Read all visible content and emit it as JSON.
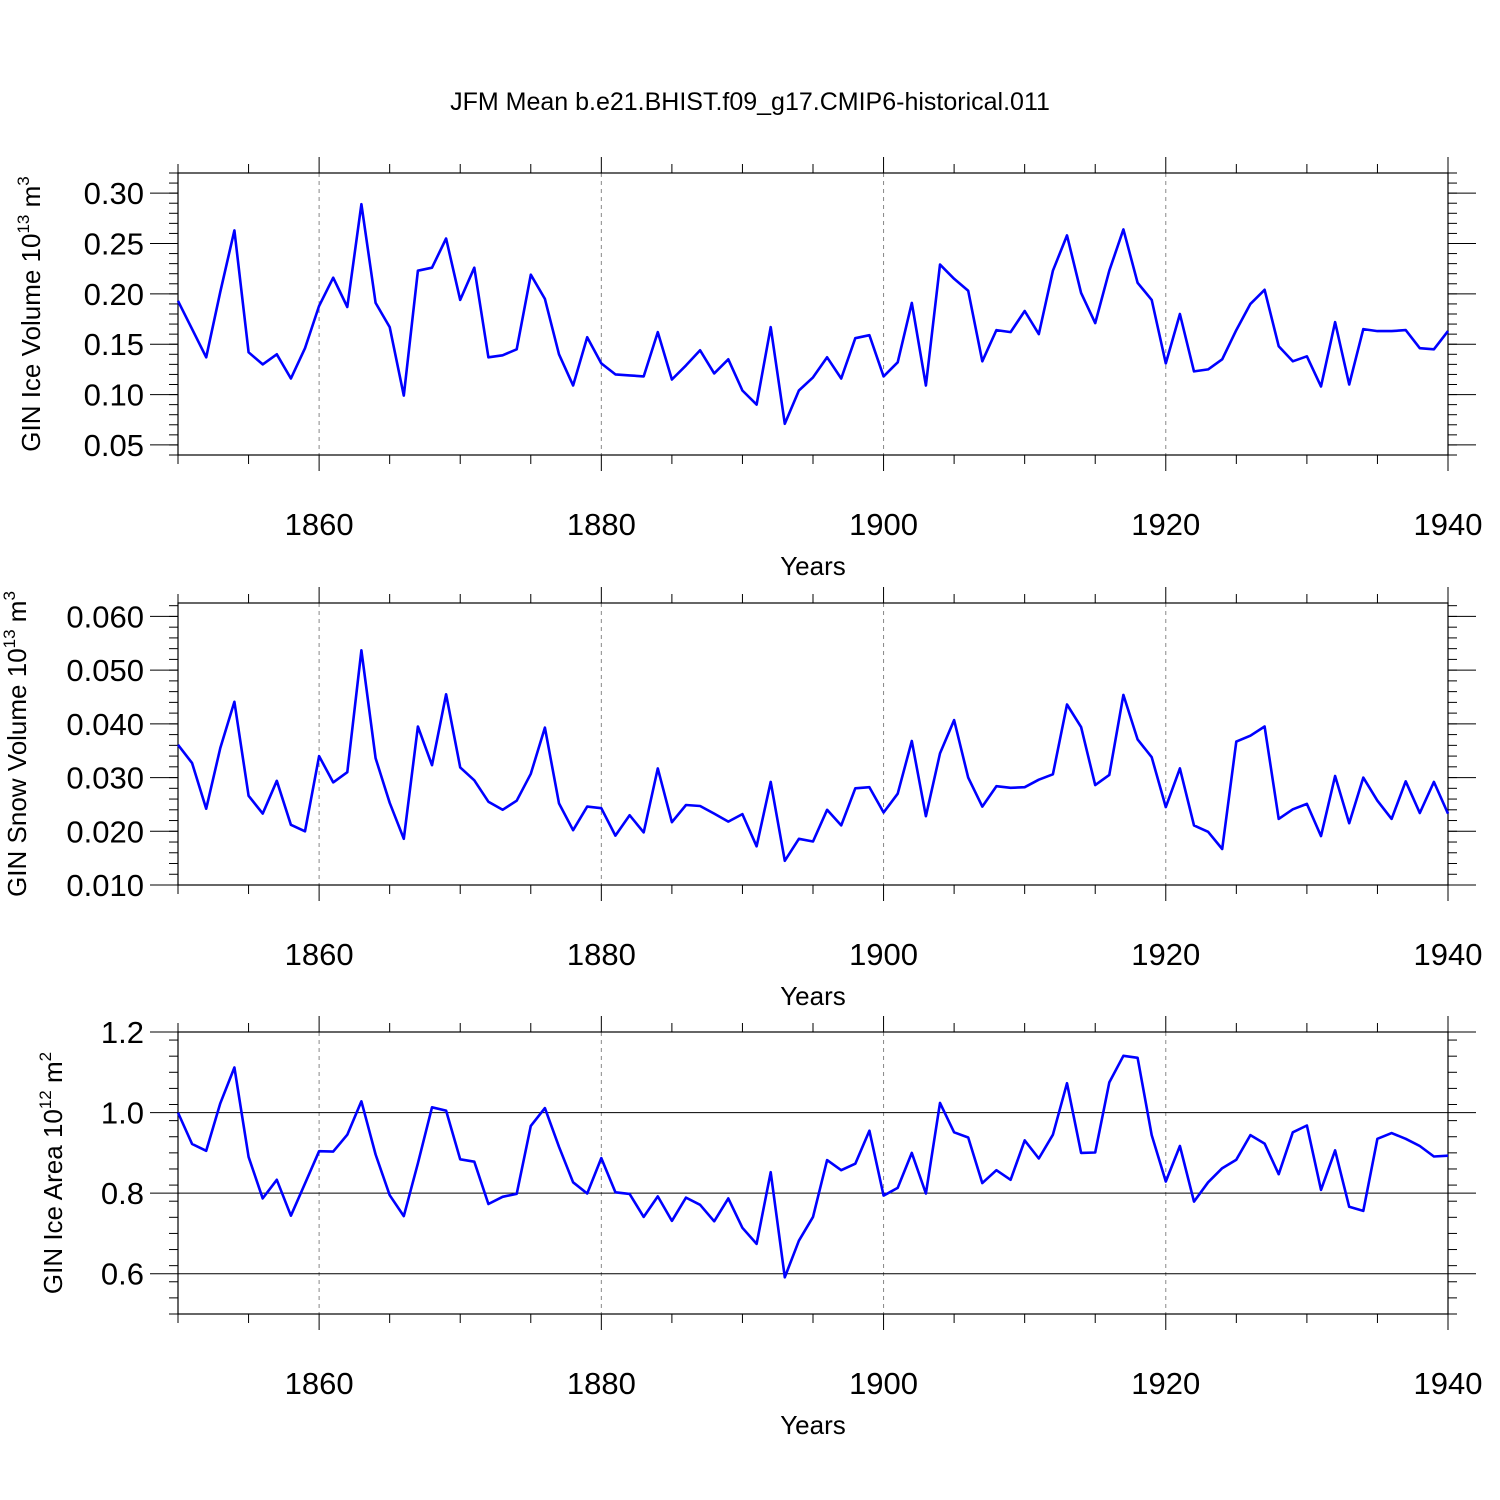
{
  "title": "JFM Mean b.e21.BHIST.f09_g17.CMIP6-historical.011",
  "colors": {
    "line": "#0000ff",
    "axis": "#000000",
    "grid": "#888888"
  },
  "chart_data": [
    {
      "type": "line",
      "name": "ice-volume",
      "ylabel_main": "GIN Ice Volume 10",
      "ylabel_exp": "13",
      "ylabel_unit": "m",
      "ylabel_unit_exp": "3",
      "xlabel": "Years",
      "xlim": [
        1850,
        1940
      ],
      "ylim": [
        0.04,
        0.32
      ],
      "yticks": [
        0.05,
        0.1,
        0.15,
        0.2,
        0.25,
        0.3
      ],
      "ytick_labels": [
        "0.05",
        "0.10",
        "0.15",
        "0.20",
        "0.25",
        "0.30"
      ],
      "xticks": [
        1860,
        1880,
        1900,
        1920,
        1940
      ],
      "xtick_labels": [
        "1860",
        "1880",
        "1900",
        "1920",
        "1940"
      ],
      "ygrid": false,
      "x_start": 1850,
      "values": [
        0.193,
        0.165,
        0.137,
        0.202,
        0.263,
        0.142,
        0.13,
        0.14,
        0.116,
        0.146,
        0.188,
        0.216,
        0.187,
        0.289,
        0.191,
        0.167,
        0.099,
        0.223,
        0.226,
        0.255,
        0.194,
        0.226,
        0.137,
        0.139,
        0.145,
        0.219,
        0.195,
        0.14,
        0.109,
        0.157,
        0.131,
        0.12,
        0.119,
        0.118,
        0.162,
        0.115,
        0.129,
        0.144,
        0.121,
        0.135,
        0.104,
        0.09,
        0.167,
        0.071,
        0.104,
        0.117,
        0.137,
        0.116,
        0.156,
        0.159,
        0.118,
        0.132,
        0.191,
        0.109,
        0.229,
        0.215,
        0.203,
        0.133,
        0.164,
        0.162,
        0.183,
        0.16,
        0.223,
        0.258,
        0.201,
        0.171,
        0.223,
        0.264,
        0.211,
        0.194,
        0.131,
        0.18,
        0.123,
        0.125,
        0.135,
        0.164,
        0.19,
        0.204,
        0.148,
        0.133,
        0.138,
        0.108,
        0.172,
        0.11,
        0.165,
        0.163,
        0.163,
        0.164,
        0.146,
        0.145,
        0.163
      ]
    },
    {
      "type": "line",
      "name": "snow-volume",
      "ylabel_main": "GIN Snow Volume 10",
      "ylabel_exp": "13",
      "ylabel_unit": "m",
      "ylabel_unit_exp": "3",
      "xlabel": "Years",
      "xlim": [
        1850,
        1940
      ],
      "ylim": [
        0.01,
        0.0625
      ],
      "yticks": [
        0.01,
        0.02,
        0.03,
        0.04,
        0.05,
        0.06
      ],
      "ytick_labels": [
        "0.010",
        "0.020",
        "0.030",
        "0.040",
        "0.050",
        "0.060"
      ],
      "xticks": [
        1860,
        1880,
        1900,
        1920,
        1940
      ],
      "xtick_labels": [
        "1860",
        "1880",
        "1900",
        "1920",
        "1940"
      ],
      "ygrid": false,
      "x_start": 1850,
      "values": [
        0.0361,
        0.0327,
        0.0242,
        0.0355,
        0.0441,
        0.0266,
        0.0233,
        0.0294,
        0.0212,
        0.02,
        0.034,
        0.0291,
        0.031,
        0.0537,
        0.0336,
        0.0253,
        0.0186,
        0.0395,
        0.0323,
        0.0455,
        0.0319,
        0.0295,
        0.0255,
        0.024,
        0.0257,
        0.0307,
        0.0393,
        0.0252,
        0.0202,
        0.0246,
        0.0243,
        0.0192,
        0.023,
        0.0198,
        0.0317,
        0.0217,
        0.0249,
        0.0247,
        0.0233,
        0.0218,
        0.0232,
        0.0172,
        0.0292,
        0.0145,
        0.0186,
        0.0181,
        0.024,
        0.0211,
        0.028,
        0.0282,
        0.0235,
        0.027,
        0.0368,
        0.0228,
        0.0345,
        0.0407,
        0.03,
        0.0246,
        0.0284,
        0.0281,
        0.0282,
        0.0296,
        0.0306,
        0.0436,
        0.0394,
        0.0286,
        0.0305,
        0.0454,
        0.0371,
        0.0338,
        0.0245,
        0.0317,
        0.0211,
        0.0199,
        0.0167,
        0.0367,
        0.0378,
        0.0395,
        0.0223,
        0.0241,
        0.0251,
        0.0191,
        0.0303,
        0.0215,
        0.03,
        0.0257,
        0.0223,
        0.0293,
        0.0234,
        0.0292,
        0.0233
      ]
    },
    {
      "type": "line",
      "name": "ice-area",
      "ylabel_main": "GIN Ice Area 10",
      "ylabel_exp": "12",
      "ylabel_unit": "m",
      "ylabel_unit_exp": "2",
      "xlabel": "Years",
      "xlim": [
        1850,
        1940
      ],
      "ylim": [
        0.5,
        1.2
      ],
      "yticks": [
        0.6,
        0.8,
        1.0,
        1.2
      ],
      "ytick_labels": [
        "0.6",
        "0.8",
        "1.0",
        "1.2"
      ],
      "xticks": [
        1860,
        1880,
        1900,
        1920,
        1940
      ],
      "xtick_labels": [
        "1860",
        "1880",
        "1900",
        "1920",
        "1940"
      ],
      "ygrid": true,
      "x_start": 1850,
      "values": [
        1.0,
        0.922,
        0.905,
        1.023,
        1.112,
        0.89,
        0.787,
        0.833,
        0.744,
        0.824,
        0.904,
        0.903,
        0.945,
        1.028,
        0.896,
        0.795,
        0.743,
        0.874,
        1.013,
        1.005,
        0.884,
        0.878,
        0.773,
        0.791,
        0.798,
        0.967,
        1.011,
        0.915,
        0.827,
        0.799,
        0.887,
        0.802,
        0.798,
        0.741,
        0.792,
        0.731,
        0.789,
        0.771,
        0.73,
        0.787,
        0.714,
        0.674,
        0.852,
        0.591,
        0.682,
        0.741,
        0.882,
        0.857,
        0.873,
        0.955,
        0.794,
        0.813,
        0.9,
        0.799,
        1.024,
        0.951,
        0.938,
        0.825,
        0.857,
        0.833,
        0.931,
        0.886,
        0.945,
        1.073,
        0.9,
        0.901,
        1.075,
        1.141,
        1.136,
        0.944,
        0.829,
        0.917,
        0.779,
        0.827,
        0.862,
        0.883,
        0.944,
        0.923,
        0.847,
        0.951,
        0.968,
        0.808,
        0.906,
        0.766,
        0.756,
        0.935,
        0.949,
        0.935,
        0.917,
        0.891,
        0.893
      ]
    }
  ]
}
